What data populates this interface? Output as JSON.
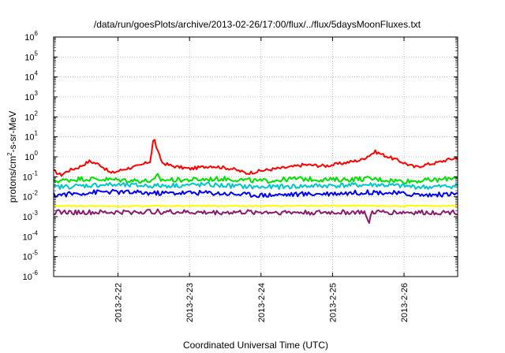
{
  "chart_data": {
    "type": "line",
    "title": "/data/run/goesPlots/archive/2013-02-26/17:00/flux/../flux/5daysMoonFluxes.txt",
    "xlabel": "Coordinated Universal Time (UTC)",
    "ylabel_parts": {
      "pre": "protons/cm",
      "sup": "2",
      "post": "-s-sr-MeV"
    },
    "y_scale": "log",
    "ylim_exponents": [
      -6,
      6
    ],
    "y_ticks": [
      {
        "base": "10",
        "exp": "6",
        "value": 6
      },
      {
        "base": "10",
        "exp": "5",
        "value": 5
      },
      {
        "base": "10",
        "exp": "4",
        "value": 4
      },
      {
        "base": "10",
        "exp": "3",
        "value": 3
      },
      {
        "base": "10",
        "exp": "2",
        "value": 2
      },
      {
        "base": "10",
        "exp": "1",
        "value": 1
      },
      {
        "base": "10",
        "exp": "0",
        "value": 0
      },
      {
        "base": "10",
        "exp": "-1",
        "value": -1
      },
      {
        "base": "10",
        "exp": "-2",
        "value": -2
      },
      {
        "base": "10",
        "exp": "-3",
        "value": -3
      },
      {
        "base": "10",
        "exp": "-4",
        "value": -4
      },
      {
        "base": "10",
        "exp": "-5",
        "value": -5
      },
      {
        "base": "10",
        "exp": "-6",
        "value": -6
      }
    ],
    "xlim_days": [
      21.1,
      26.75
    ],
    "x_ticks": [
      {
        "label": "2013-2-22",
        "value": 22
      },
      {
        "label": "2013-2-23",
        "value": 23
      },
      {
        "label": "2013-2-24",
        "value": 24
      },
      {
        "label": "2013-2-25",
        "value": 25
      },
      {
        "label": "2013-2-26",
        "value": 26
      }
    ],
    "grid": true,
    "series": [
      {
        "color": "#ff0000",
        "x": [
          21.1,
          21.2,
          21.3,
          21.45,
          21.6,
          21.75,
          21.9,
          22.1,
          22.3,
          22.45,
          22.5,
          22.55,
          22.62,
          22.75,
          23.0,
          23.3,
          23.6,
          23.8,
          24.0,
          24.2,
          24.4,
          24.6,
          24.9,
          25.1,
          25.4,
          25.6,
          25.72,
          25.85,
          26.0,
          26.15,
          26.3,
          26.45,
          26.6,
          26.75
        ],
        "y": [
          0.2,
          0.12,
          0.2,
          0.3,
          0.6,
          0.4,
          0.15,
          0.25,
          0.35,
          0.6,
          10,
          2,
          0.5,
          0.35,
          0.25,
          0.35,
          0.25,
          0.15,
          0.2,
          0.25,
          0.3,
          0.4,
          0.35,
          0.45,
          0.7,
          1.8,
          1.2,
          0.8,
          0.5,
          0.3,
          0.4,
          0.5,
          0.7,
          0.9
        ]
      },
      {
        "color": "#00e000",
        "x": [
          21.1,
          21.5,
          22.0,
          22.5,
          22.55,
          22.6,
          23.0,
          23.5,
          24.0,
          24.5,
          25.0,
          25.5,
          26.0,
          26.5,
          26.75
        ],
        "y": [
          0.06,
          0.08,
          0.07,
          0.06,
          0.12,
          0.07,
          0.07,
          0.08,
          0.06,
          0.08,
          0.07,
          0.08,
          0.06,
          0.07,
          0.1
        ]
      },
      {
        "color": "#00c8c8",
        "x": [
          21.1,
          21.8,
          22.5,
          23.2,
          24.0,
          24.8,
          25.6,
          26.3,
          26.75
        ],
        "y": [
          0.03,
          0.04,
          0.035,
          0.04,
          0.03,
          0.035,
          0.04,
          0.03,
          0.035
        ]
      },
      {
        "color": "#0000ff",
        "x": [
          21.1,
          21.8,
          22.5,
          23.2,
          24.0,
          24.8,
          25.6,
          26.3,
          26.75
        ],
        "y": [
          0.012,
          0.018,
          0.015,
          0.016,
          0.012,
          0.014,
          0.017,
          0.012,
          0.014
        ]
      },
      {
        "color": "#ffff00",
        "x": [
          21.1,
          22.0,
          23.0,
          24.0,
          25.0,
          26.0,
          26.75
        ],
        "y": [
          0.0035,
          0.0033,
          0.0035,
          0.0034,
          0.0035,
          0.0034,
          0.0035
        ]
      },
      {
        "color": "#8b1a6b",
        "x": [
          21.1,
          21.8,
          22.5,
          23.2,
          24.0,
          24.8,
          25.45,
          25.5,
          25.55,
          26.3,
          26.75
        ],
        "y": [
          0.0017,
          0.0016,
          0.0018,
          0.0016,
          0.0017,
          0.0016,
          0.0017,
          0.0004,
          0.0017,
          0.0016,
          0.0017
        ]
      }
    ]
  }
}
